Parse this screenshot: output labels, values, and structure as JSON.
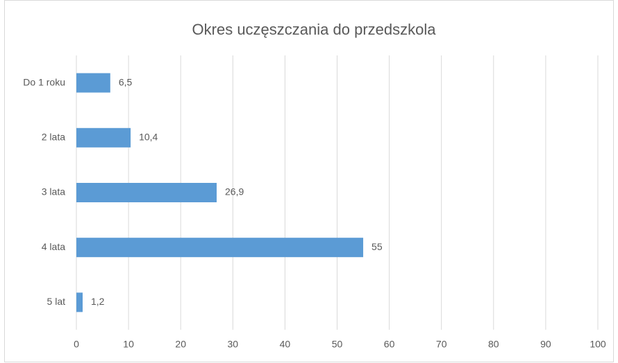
{
  "chart_data": {
    "type": "bar",
    "orientation": "horizontal",
    "title": "Okres uczęszczania do przedszkola",
    "categories": [
      "Do 1 roku",
      "2 lata",
      "3 lata",
      "4 lata",
      "5 lat"
    ],
    "values": [
      6.5,
      10.4,
      26.9,
      55,
      1.2
    ],
    "value_labels": [
      "6,5",
      "10,4",
      "26,9",
      "55",
      "1,2"
    ],
    "color": "#5b9bd5",
    "xlim": [
      0,
      100
    ],
    "xticks": [
      0,
      10,
      20,
      30,
      40,
      50,
      60,
      70,
      80,
      90,
      100
    ],
    "grid": true
  }
}
